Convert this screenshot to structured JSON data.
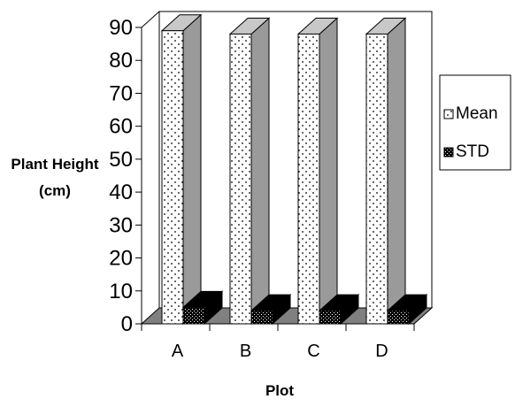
{
  "chart_data": {
    "type": "bar",
    "style": "3d-clustered-column",
    "categories": [
      "A",
      "B",
      "C",
      "D"
    ],
    "series": [
      {
        "name": "Mean",
        "values": [
          89,
          88,
          88,
          88
        ],
        "pattern": "dotted-white"
      },
      {
        "name": "STD",
        "values": [
          5,
          4,
          4,
          4
        ],
        "pattern": "speckled-black"
      }
    ],
    "xlabel": "Plot",
    "ylabel_lines": [
      "Plant Height",
      "(cm)"
    ],
    "ylim": [
      0,
      90
    ],
    "yticks": [
      "0",
      "10",
      "20",
      "30",
      "40",
      "50",
      "60",
      "70",
      "80",
      "90"
    ],
    "grid": false,
    "legend": "right",
    "colors": {
      "floor": "#808080",
      "bar_side": "#9a9a9a",
      "bar_top": "#c8c8c8",
      "std_fill": "#000000"
    }
  }
}
